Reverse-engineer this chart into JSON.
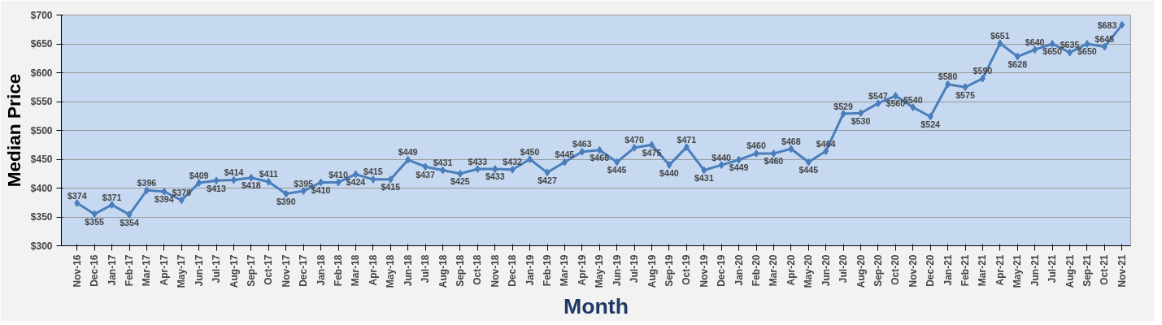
{
  "chart_data": {
    "type": "line",
    "xlabel": "Month",
    "ylabel": "Median Price",
    "categories": [
      "Nov-16",
      "Dec-16",
      "Jan-17",
      "Feb-17",
      "Mar-17",
      "Apr-17",
      "May-17",
      "Jun-17",
      "Jul-17",
      "Aug-17",
      "Sep-17",
      "Oct-17",
      "Nov-17",
      "Dec-17",
      "Jan-18",
      "Feb-18",
      "Mar-18",
      "Apr-18",
      "May-18",
      "Jun-18",
      "Jul-18",
      "Aug-18",
      "Sep-18",
      "Oct-18",
      "Nov-18",
      "Dec-18",
      "Jan-19",
      "Feb-19",
      "Mar-19",
      "Apr-19",
      "May-19",
      "Jun-19",
      "Jul-19",
      "Aug-19",
      "Sep-19",
      "Oct-19",
      "Nov-19",
      "Dec-19",
      "Jan-20",
      "Feb-20",
      "Mar-20",
      "Apr-20",
      "May-20",
      "Jun-20",
      "Jul-20",
      "Aug-20",
      "Sep-20",
      "Oct-20",
      "Nov-20",
      "Dec-20",
      "Jan-21",
      "Feb-21",
      "Mar-21",
      "Apr-21",
      "May-21",
      "Jun-21",
      "Jul-21",
      "Aug-21",
      "Sep-21",
      "Oct-21",
      "Nov-21"
    ],
    "series": [
      {
        "color": "#4a7ebb",
        "values": [
          374,
          355,
          371,
          354,
          396,
          394,
          379,
          409,
          413,
          414,
          418,
          411,
          390,
          395,
          410,
          410,
          424,
          415,
          415,
          449,
          437,
          431,
          425,
          433,
          433,
          432,
          450,
          427,
          445,
          463,
          466,
          445,
          470,
          475,
          440,
          471,
          431,
          440,
          449,
          460,
          460,
          468,
          445,
          464,
          529,
          530,
          547,
          560,
          540,
          524,
          580,
          575,
          590,
          651,
          628,
          640,
          650,
          635,
          650,
          645,
          683
        ],
        "value_labels": [
          "$374",
          "$355",
          "$371",
          "$354",
          "$396",
          "$394",
          "$379",
          "$409",
          "$413",
          "$414",
          "$418",
          "$411",
          "$390",
          "$395",
          "$410",
          "$410",
          "$424",
          "$415",
          "$415",
          "$449",
          "$437",
          "$431",
          "$425",
          "$433",
          "$433",
          "$432",
          "$450",
          "$427",
          "$445",
          "$463",
          "$466",
          "$445",
          "$470",
          "$475",
          "$440",
          "$471",
          "$431",
          "$440",
          "$449",
          "$460",
          "$460",
          "$468",
          "$445",
          "$464",
          "$529",
          "$530",
          "$547",
          "$560",
          "$540",
          "$524",
          "$580",
          "$575",
          "$590",
          "$651",
          "$628",
          "$640",
          "$650",
          "$635",
          "$650",
          "$645",
          "$683"
        ]
      }
    ],
    "ylim": [
      300,
      700
    ],
    "yticks": [
      {
        "value": 300,
        "label": "$300"
      },
      {
        "value": 350,
        "label": "$350"
      },
      {
        "value": 400,
        "label": "$400"
      },
      {
        "value": 450,
        "label": "$450"
      },
      {
        "value": 500,
        "label": "$500"
      },
      {
        "value": 550,
        "label": "$550"
      },
      {
        "value": 600,
        "label": "$600"
      },
      {
        "value": 650,
        "label": "$650"
      },
      {
        "value": 700,
        "label": "$700"
      }
    ],
    "grid": "y",
    "marker": "diamond",
    "line_style": "solid"
  }
}
